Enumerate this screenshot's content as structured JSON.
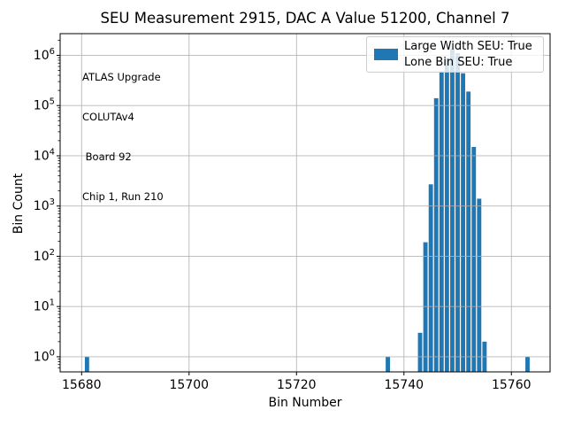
{
  "title": "SEU Measurement 2915, DAC A Value 51200, Channel 7",
  "annotation": {
    "line1": "ATLAS Upgrade",
    "line2": "COLUTAv4",
    "line3": " Board 92",
    "line4": "Chip 1, Run 210"
  },
  "legend": {
    "line1": "Large Width SEU: True",
    "line2": "Lone Bin SEU: True",
    "swatch_color": "#1f77b4",
    "position": "upper right"
  },
  "chart_data": {
    "type": "bar",
    "title": "SEU Measurement 2915, DAC A Value 51200, Channel 7",
    "xlabel": "Bin Number",
    "ylabel": "Bin Count",
    "yscale": "log",
    "grid": true,
    "bar_color": "#1f77b4",
    "grid_color": "#b0b0b0",
    "bar_width_bins": 0.8,
    "xlim": [
      15676,
      15767.2
    ],
    "ylim": [
      0.5,
      2700000
    ],
    "xticks": [
      15680,
      15700,
      15720,
      15740,
      15760
    ],
    "ytick_exponents": [
      0,
      1,
      2,
      3,
      4,
      5,
      6
    ],
    "points": [
      {
        "bin": 15681,
        "count": 1
      },
      {
        "bin": 15737,
        "count": 1
      },
      {
        "bin": 15743,
        "count": 3
      },
      {
        "bin": 15744,
        "count": 190
      },
      {
        "bin": 15745,
        "count": 2700
      },
      {
        "bin": 15746,
        "count": 140000
      },
      {
        "bin": 15747,
        "count": 480000
      },
      {
        "bin": 15748,
        "count": 870000
      },
      {
        "bin": 15749,
        "count": 1350000
      },
      {
        "bin": 15750,
        "count": 1100000
      },
      {
        "bin": 15751,
        "count": 440000
      },
      {
        "bin": 15752,
        "count": 190000
      },
      {
        "bin": 15753,
        "count": 15000
      },
      {
        "bin": 15754,
        "count": 1400
      },
      {
        "bin": 15755,
        "count": 2
      },
      {
        "bin": 15763,
        "count": 1
      }
    ]
  }
}
